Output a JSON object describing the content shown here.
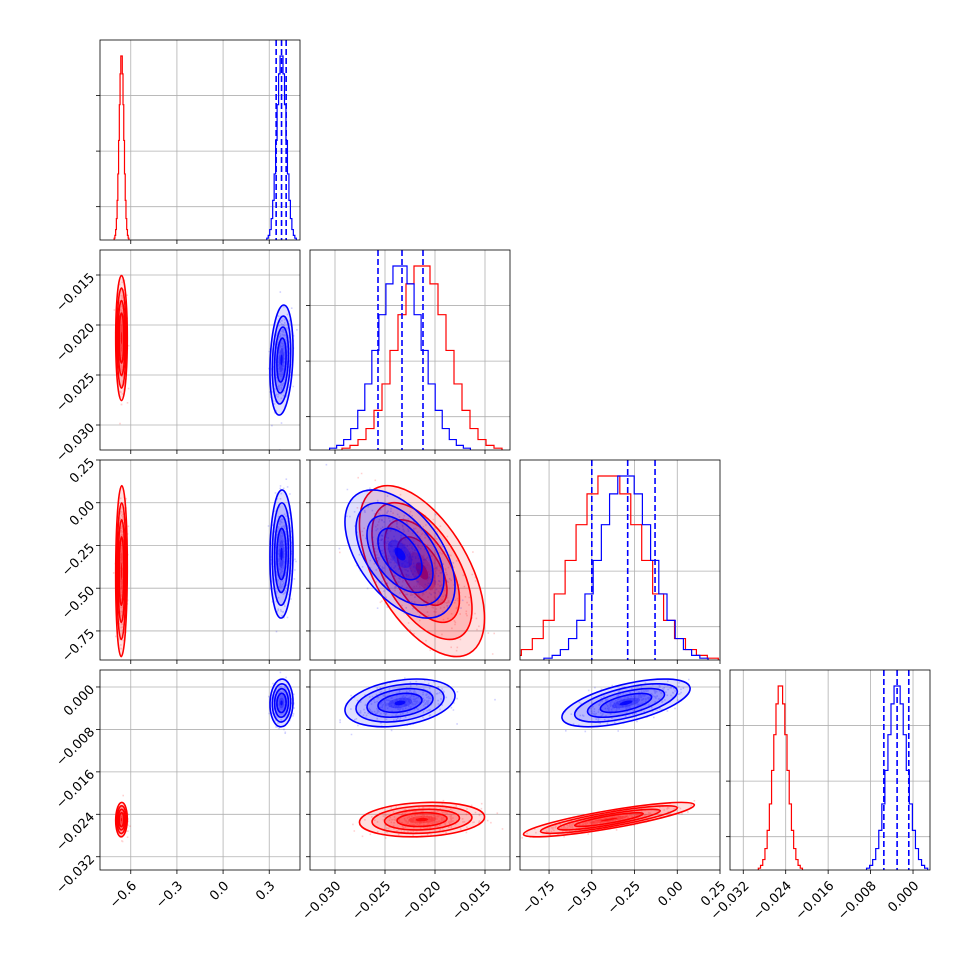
{
  "colors": {
    "red": "#ff0000",
    "blue": "#0000ff",
    "grid": "#b0b0b0"
  },
  "chart_data": {
    "type": "corner",
    "title": "",
    "parameters": [
      {
        "name": "",
        "range": [
          -0.8,
          0.5
        ],
        "ticks": [
          -0.6,
          -0.3,
          0.0,
          0.3
        ],
        "tick_labels": [
          "−0.6",
          "−0.3",
          "0.0",
          "0.3"
        ]
      },
      {
        "name": "",
        "range": [
          -0.0325,
          -0.0125
        ],
        "ticks": [
          -0.03,
          -0.025,
          -0.02,
          -0.015
        ],
        "tick_labels": [
          "−0.030",
          "−0.025",
          "−0.020",
          "−0.015"
        ]
      },
      {
        "name": "",
        "range": [
          -0.92,
          0.25
        ],
        "ticks": [
          -0.75,
          -0.5,
          -0.25,
          0.0,
          0.25
        ],
        "tick_labels": [
          "−0.75",
          "−0.50",
          "−0.25",
          "0.00",
          "0.25"
        ]
      },
      {
        "name": "",
        "range": [
          -0.0345,
          0.0032
        ],
        "ticks": [
          -0.032,
          -0.024,
          -0.016,
          -0.008,
          0.0
        ],
        "tick_labels": [
          "−0.032",
          "−0.024",
          "−0.016",
          "−0.008",
          "0.000"
        ]
      }
    ],
    "series": [
      {
        "color": "red",
        "means": [
          -0.66,
          -0.0213,
          -0.4,
          -0.025
        ],
        "sigmas": [
          0.015,
          0.0025,
          0.2,
          0.0013
        ],
        "correlations": [
          [
            0,
            1,
            0.0
          ],
          [
            0,
            2,
            0.05
          ],
          [
            0,
            3,
            0.05
          ],
          [
            1,
            2,
            -0.55
          ],
          [
            1,
            3,
            0.15
          ],
          [
            2,
            3,
            0.85
          ]
        ],
        "quantiles": null
      },
      {
        "color": "blue",
        "means": [
          0.38,
          -0.0235,
          -0.3,
          -0.003
        ],
        "sigmas": [
          0.03,
          0.0022,
          0.15,
          0.0018
        ],
        "correlations": [
          [
            0,
            1,
            0.2
          ],
          [
            0,
            2,
            0.05
          ],
          [
            0,
            3,
            0.05
          ],
          [
            1,
            2,
            -0.5
          ],
          [
            1,
            3,
            0.3
          ],
          [
            2,
            3,
            0.6
          ]
        ],
        "quantiles": [
          [
            0.345,
            0.38,
            0.41
          ],
          [
            -0.0257,
            -0.0233,
            -0.0212
          ],
          [
            -0.5,
            -0.29,
            -0.13
          ],
          [
            -0.0055,
            -0.003,
            -0.0008
          ]
        ]
      }
    ],
    "grid": true,
    "legend": ""
  }
}
